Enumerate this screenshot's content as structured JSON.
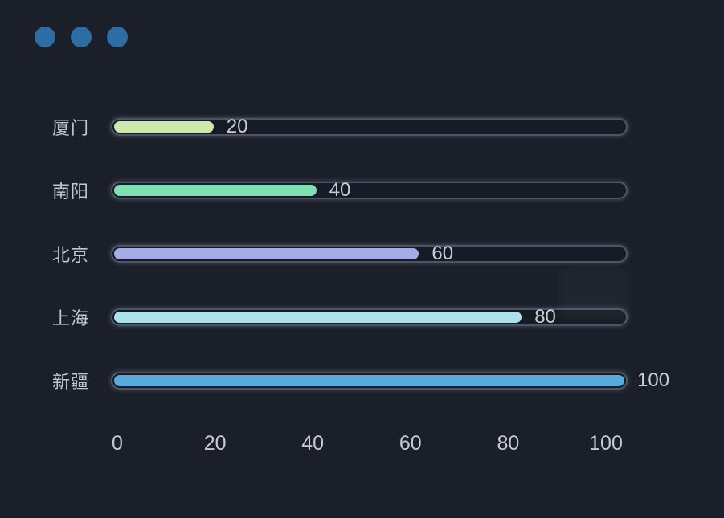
{
  "window": {
    "dot_count": 3,
    "dot_color": "#2d6ca4"
  },
  "colors": {
    "background": "#1a1f29",
    "track_border": "#4d5565",
    "track_fill": "#171b25",
    "label": "#c3c6cf",
    "value": "#c9ccd5",
    "axis": "#c7cad3"
  },
  "chart_data": {
    "type": "bar",
    "orientation": "horizontal",
    "title": "",
    "xlabel": "",
    "ylabel": "",
    "categories": [
      "厦门",
      "南阳",
      "北京",
      "上海",
      "新疆"
    ],
    "values": [
      20,
      40,
      60,
      80,
      100
    ],
    "value_labels": [
      "20",
      "40",
      "60",
      "80",
      "100"
    ],
    "bar_colors": [
      "#cdeaae",
      "#7fe0b1",
      "#a5abe7",
      "#aae2ea",
      "#58a9de"
    ],
    "xlim": [
      0,
      100
    ],
    "x_ticks": [
      "0",
      "20",
      "40",
      "60",
      "80",
      "100"
    ],
    "grid": false,
    "legend": false,
    "track_style": "rounded-pill-outline"
  }
}
